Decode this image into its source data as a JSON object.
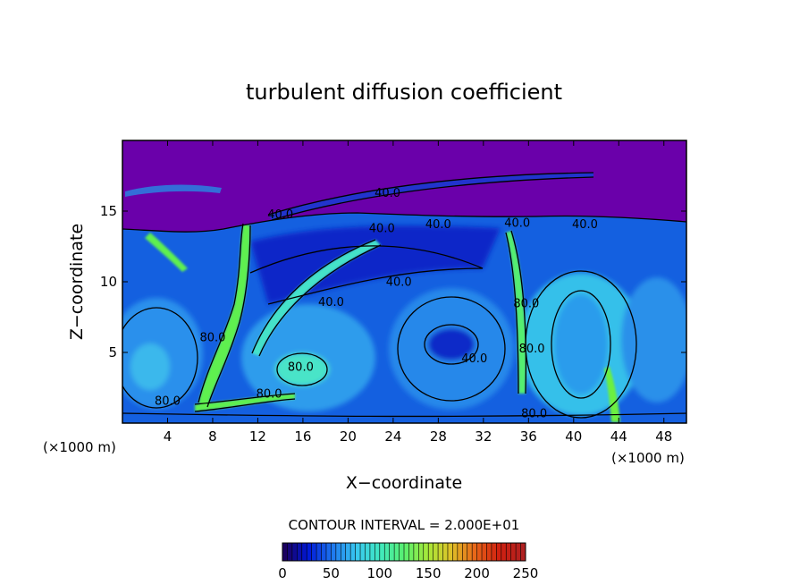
{
  "chart_data": {
    "type": "heatmap",
    "title": "turbulent diffusion coefficient",
    "xlabel": "X−coordinate",
    "ylabel": "Z−coordinate",
    "x_unit_label": "(×1000 m)",
    "x_unit_label_right": "(×1000 m)",
    "xlim": [
      0,
      50
    ],
    "ylim": [
      0,
      20
    ],
    "x_ticks": [
      4,
      8,
      12,
      16,
      20,
      24,
      28,
      32,
      36,
      40,
      44,
      48
    ],
    "y_ticks": [
      5,
      10,
      15
    ],
    "contour_interval_text": "CONTOUR INTERVAL = 2.000E+01",
    "contour_labels": [
      {
        "text": "40.0",
        "x": 23.5,
        "z": 16.0
      },
      {
        "text": "40.0",
        "x": 14.0,
        "z": 14.5
      },
      {
        "text": "40.0",
        "x": 23.0,
        "z": 13.5
      },
      {
        "text": "40.0",
        "x": 28.0,
        "z": 13.8
      },
      {
        "text": "40.0",
        "x": 35.0,
        "z": 13.9
      },
      {
        "text": "40.0",
        "x": 41.0,
        "z": 13.8
      },
      {
        "text": "40.0",
        "x": 24.5,
        "z": 9.7
      },
      {
        "text": "40.0",
        "x": 18.5,
        "z": 8.3
      },
      {
        "text": "80.0",
        "x": 8.0,
        "z": 5.8
      },
      {
        "text": "80.0",
        "x": 4.0,
        "z": 1.3
      },
      {
        "text": "80.0",
        "x": 13.0,
        "z": 1.8
      },
      {
        "text": "80.0",
        "x": 15.8,
        "z": 3.7
      },
      {
        "text": "40.0",
        "x": 31.2,
        "z": 4.3
      },
      {
        "text": "80.0",
        "x": 36.3,
        "z": 5.0
      },
      {
        "text": "80.0",
        "x": 36.5,
        "z": 0.4
      },
      {
        "text": "80.0",
        "x": 35.8,
        "z": 8.2
      }
    ],
    "colorbar": {
      "min": 0,
      "max": 250,
      "ticks": [
        0,
        50,
        100,
        150,
        200,
        250
      ],
      "colors": [
        "#1a0060",
        "#0018d8",
        "#1e78f0",
        "#38c8f0",
        "#40e8c0",
        "#58f070",
        "#a8e838",
        "#e0c028",
        "#e86418",
        "#d02010",
        "#b02020"
      ]
    },
    "field_colors": {
      "stable_layer": "#6600a8",
      "low": "#0a30d0",
      "medium": "#1a80e8",
      "medium_high": "#28c8e8",
      "high": "#40ecc0",
      "very_high": "#60f040",
      "contour_line": "#000000"
    }
  }
}
